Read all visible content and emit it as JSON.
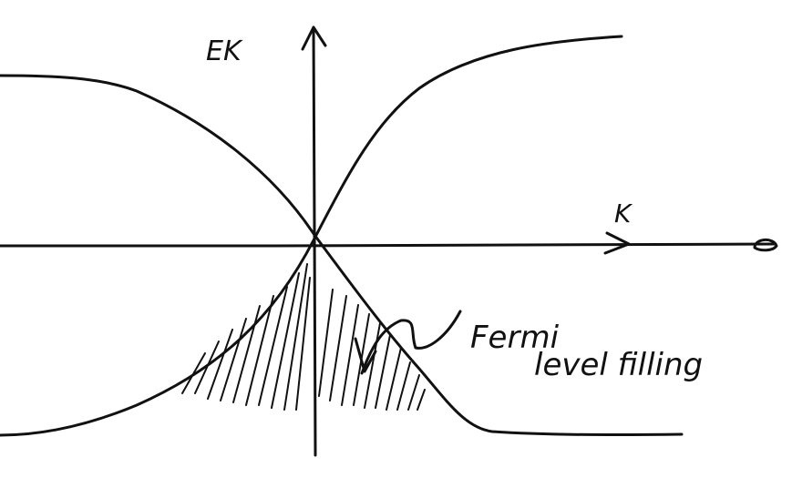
{
  "diagram": {
    "y_axis_label": "EK",
    "x_axis_label": "K",
    "annotation": {
      "line1": "Fermi",
      "line2": "level filling"
    }
  },
  "colors": {
    "background": "#ffffff",
    "ink": "#111111"
  }
}
